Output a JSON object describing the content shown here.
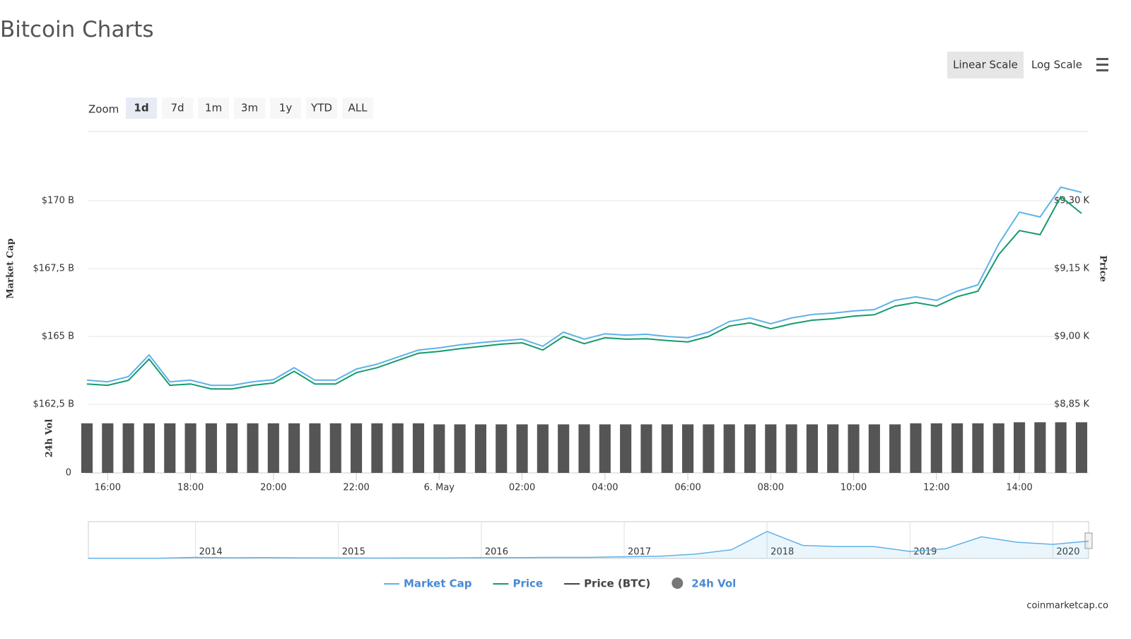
{
  "chart_data": [
    {
      "type": "line",
      "title": "Bitcoin Charts",
      "scale_options": [
        "Linear Scale",
        "Log Scale"
      ],
      "active_scale": 0,
      "zoom_label": "Zoom",
      "zoom_options": [
        "1d",
        "7d",
        "1m",
        "3m",
        "1y",
        "YTD",
        "ALL"
      ],
      "active_zoom": 0,
      "ylabel": "Market Cap",
      "y2label": "Price",
      "vol_label": "24h Vol",
      "categories": [
        null,
        "16:00",
        null,
        null,
        null,
        "18:00",
        null,
        null,
        null,
        "20:00",
        null,
        null,
        null,
        "22:00",
        null,
        null,
        null,
        "6. May",
        null,
        null,
        null,
        "02:00",
        null,
        null,
        null,
        "04:00",
        null,
        null,
        null,
        "06:00",
        null,
        null,
        null,
        "08:00",
        null,
        null,
        null,
        "10:00",
        null,
        null,
        null,
        "12:00",
        null,
        null,
        null,
        "14:00",
        null,
        null,
        null
      ],
      "ylim": [
        162.5,
        172.5
      ],
      "yticks": [
        {
          "value": 162.5,
          "label": "$162,5 B"
        },
        {
          "value": 165,
          "label": "$165 B"
        },
        {
          "value": 167.5,
          "label": "$167,5 B"
        },
        {
          "value": 170,
          "label": "$170 B"
        }
      ],
      "y2lim": [
        8.85,
        9.45
      ],
      "y2ticks": [
        {
          "value": 8.85,
          "label": "$8,85 K"
        },
        {
          "value": 9,
          "label": "$9,00 K"
        },
        {
          "value": 9.15,
          "label": "$9,15 K"
        },
        {
          "value": 9.3,
          "label": "$9,30 K"
        }
      ],
      "vol_ylim": [
        0,
        65
      ],
      "vol_yticks": [
        0
      ],
      "grid": true,
      "series": [
        {
          "name": "Market Cap",
          "color": "#5eb2e8",
          "values": [
            163.39,
            163.33,
            163.52,
            164.32,
            163.33,
            163.39,
            163.2,
            163.2,
            163.33,
            163.41,
            163.85,
            163.39,
            163.39,
            163.8,
            163.98,
            164.24,
            164.5,
            164.58,
            164.69,
            164.77,
            164.84,
            164.9,
            164.64,
            165.16,
            164.9,
            165.1,
            165.05,
            165.08,
            165.0,
            164.95,
            165.16,
            165.55,
            165.68,
            165.47,
            165.68,
            165.81,
            165.86,
            165.94,
            165.99,
            166.33,
            166.46,
            166.33,
            166.67,
            166.9,
            168.41,
            169.58,
            169.4,
            170.5,
            170.31
          ]
        },
        {
          "name": "Price",
          "color": "#159b6c",
          "axis": "y2",
          "values": [
            8.895,
            8.892,
            8.903,
            8.95,
            8.892,
            8.895,
            8.884,
            8.884,
            8.892,
            8.897,
            8.923,
            8.895,
            8.895,
            8.92,
            8.931,
            8.947,
            8.963,
            8.967,
            8.973,
            8.978,
            8.983,
            8.986,
            8.97,
            9.0,
            8.984,
            8.997,
            8.994,
            8.995,
            8.991,
            8.988,
            9.0,
            9.023,
            9.03,
            9.017,
            9.028,
            9.036,
            9.039,
            9.045,
            9.048,
            9.067,
            9.075,
            9.067,
            9.088,
            9.1,
            9.181,
            9.234,
            9.225,
            9.309,
            9.272
          ]
        },
        {
          "name": "Price (BTC)",
          "color": "#444444",
          "values": [
            null,
            null,
            null,
            null,
            null,
            null,
            null,
            null,
            null,
            null,
            null,
            null,
            null,
            null,
            null,
            null,
            null,
            null,
            null,
            null,
            null,
            null,
            null,
            null,
            null,
            null,
            null,
            null,
            null,
            null,
            null,
            null,
            null,
            null,
            null,
            null,
            null,
            null,
            null,
            null,
            null,
            null,
            null,
            null,
            null,
            null,
            null,
            null,
            null
          ]
        },
        {
          "name": "24h Vol",
          "color": "#555555",
          "type": "column",
          "axis": "vol",
          "values": [
            47,
            47,
            47,
            47,
            47,
            47,
            47,
            47,
            47,
            47,
            47,
            47,
            47,
            47,
            47,
            47,
            47,
            46,
            46,
            46,
            46,
            46,
            46,
            46,
            46,
            46,
            46,
            46,
            46,
            46,
            46,
            46,
            46,
            46,
            46,
            46,
            46,
            46,
            46,
            46,
            47,
            47,
            47,
            47,
            47,
            48,
            48,
            48,
            48
          ]
        }
      ],
      "source": "coinmarketcap.co"
    },
    {
      "type": "area",
      "color": "#5eb2e8",
      "categories": [
        null,
        null,
        null,
        "2014",
        null,
        null,
        null,
        "2015",
        null,
        null,
        null,
        "2016",
        null,
        null,
        null,
        "2017",
        null,
        null,
        null,
        "2018",
        null,
        null,
        null,
        "2019",
        null,
        null,
        null,
        "2020",
        null
      ],
      "values": [
        1.5,
        1,
        2,
        10,
        6,
        8,
        5,
        4,
        3,
        4,
        4,
        7,
        7,
        10,
        10,
        16,
        20,
        40,
        80,
        250,
        120,
        110,
        110,
        65,
        90,
        200,
        150,
        130,
        160
      ],
      "ylim": [
        0,
        340
      ]
    }
  ]
}
